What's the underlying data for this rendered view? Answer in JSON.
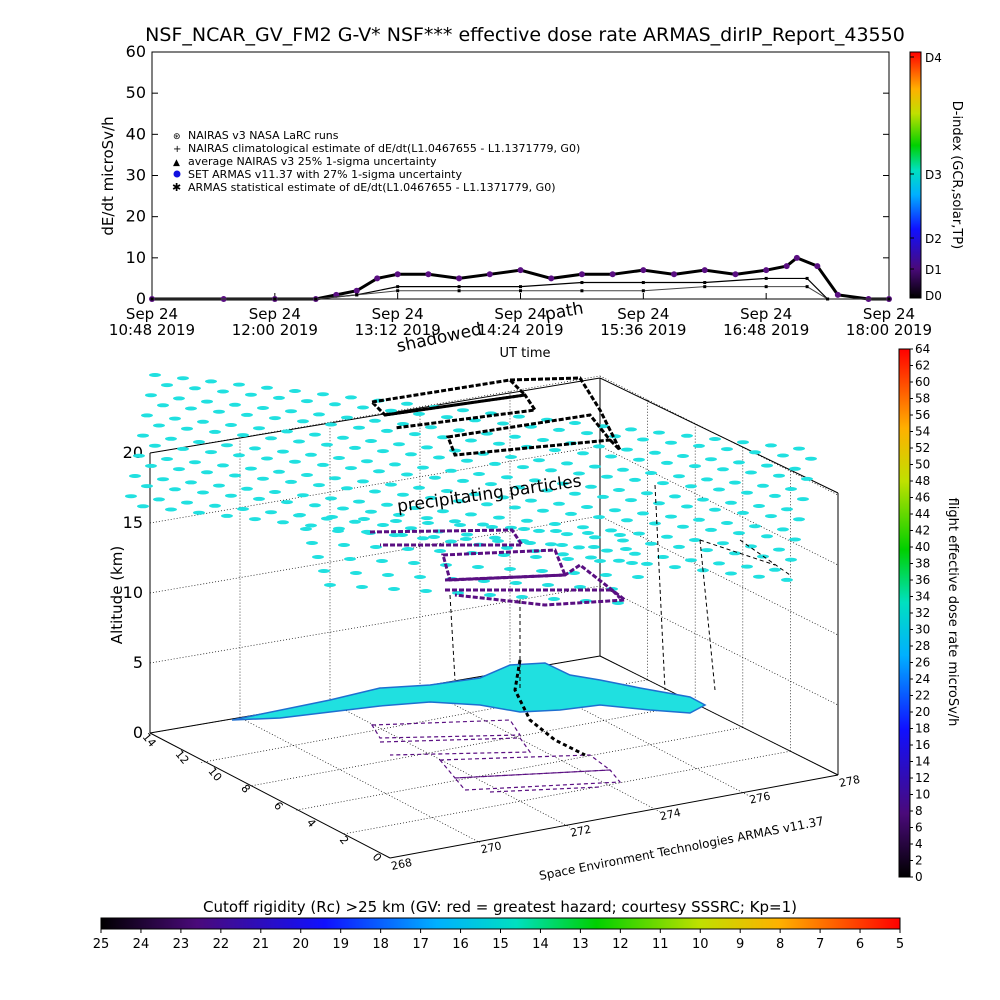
{
  "title": "NSF_NCAR_GV_FM2 G-V* NSF*** effective dose rate ARMAS_dirIP_Report_43550",
  "top_chart": {
    "ylabel": "dE/dt microSv/h",
    "yticks": [
      "0",
      "10",
      "20",
      "30",
      "40",
      "50",
      "60"
    ],
    "xticks": [
      {
        "l1": "Sep 24",
        "l2": "10:48 2019"
      },
      {
        "l1": "Sep 24",
        "l2": "12:00 2019"
      },
      {
        "l1": "Sep 24",
        "l2": "13:12 2019"
      },
      {
        "l1": "Sep 24",
        "l2": "14:24 2019"
      },
      {
        "l1": "Sep 24",
        "l2": "15:36 2019"
      },
      {
        "l1": "Sep 24",
        "l2": "16:48 2019"
      },
      {
        "l1": "Sep 24",
        "l2": "18:00 2019"
      }
    ],
    "xlabel": "UT time",
    "overlay_text": [
      "shadowed",
      "path"
    ],
    "legend": [
      "NAIRAS v3 NASA LaRC runs",
      "NAIRAS climatological estimate of dE/dt(L1.0467655 - L1.1371779, G0)",
      "average NAIRAS v3 25% 1-sigma uncertainty",
      "SET ARMAS v11.37 with 27% 1-sigma uncertainty",
      "ARMAS statistical estimate of dE/dt(L1.0467655 - L1.1371779, G0)"
    ],
    "dindex_ticks": [
      "D0",
      "D1",
      "D2",
      "D3",
      "D4"
    ],
    "dindex_label": "D-index (GCR,solar,TP)"
  },
  "chart_data": {
    "type": "line",
    "x_unit": "UT time (hours), Sep 24 2019",
    "xlim": [
      10.8,
      18.0
    ],
    "ylim": [
      0,
      60
    ],
    "series": [
      {
        "name": "SET ARMAS v11.37 with 27% 1-sigma uncertainty",
        "x": [
          10.8,
          11.5,
          12.0,
          12.4,
          12.6,
          12.8,
          13.0,
          13.2,
          13.5,
          13.8,
          14.1,
          14.4,
          14.7,
          15.0,
          15.3,
          15.6,
          15.9,
          16.2,
          16.5,
          16.8,
          17.0,
          17.1,
          17.3,
          17.5,
          17.8,
          18.0
        ],
        "y": [
          0,
          0,
          0,
          0,
          1,
          2,
          5,
          6,
          6,
          5,
          6,
          7,
          5,
          6,
          6,
          7,
          6,
          7,
          6,
          7,
          8,
          10,
          8,
          1,
          0,
          0
        ]
      },
      {
        "name": "NAIRAS climatological estimate of dE/dt(L1.0467655 - L1.1371779, G0)",
        "x": [
          10.8,
          12.0,
          12.4,
          12.8,
          13.2,
          13.8,
          14.4,
          15.0,
          15.6,
          16.2,
          16.8,
          17.2,
          17.4,
          18.0
        ],
        "y": [
          0,
          0,
          0,
          1,
          3,
          3,
          3,
          4,
          4,
          4,
          5,
          5,
          0,
          0
        ]
      },
      {
        "name": "ARMAS statistical estimate of dE/dt(L1.0467655 - L1.1371779, G0)",
        "x": [
          10.8,
          12.0,
          12.4,
          12.8,
          13.2,
          13.8,
          14.4,
          15.0,
          15.6,
          16.2,
          16.8,
          17.2,
          17.4,
          18.0
        ],
        "y": [
          0,
          0,
          0,
          1,
          2,
          2,
          2,
          2,
          2,
          3,
          3,
          3,
          0,
          0
        ]
      }
    ]
  },
  "lower_chart": {
    "zlabel": "Altitude (km)",
    "zticks": [
      "0",
      "5",
      "10",
      "15",
      "20"
    ],
    "lon_ticks": [
      "268",
      "270",
      "272",
      "274",
      "276",
      "278"
    ],
    "lat_ticks": [
      "0",
      "2",
      "4",
      "6",
      "8",
      "10",
      "12",
      "14"
    ],
    "text_precipitating": "precipitating particles",
    "credit": "Space Environment Technologies ARMAS v11.37",
    "colorbar_label": "flight effective dose rate microSv/h",
    "colorbar_ticks": [
      "0",
      "2",
      "4",
      "6",
      "8",
      "10",
      "12",
      "14",
      "16",
      "18",
      "20",
      "22",
      "24",
      "26",
      "28",
      "30",
      "32",
      "34",
      "36",
      "38",
      "40",
      "42",
      "44",
      "46",
      "48",
      "50",
      "52",
      "54",
      "56",
      "58",
      "60",
      "62",
      "64"
    ]
  },
  "rc_bar": {
    "title": "Cutoff rigidity (Rc) >25 km (GV: red = greatest hazard; courtesy SSSRC; Kp=1)",
    "ticks": [
      "25",
      "24",
      "23",
      "22",
      "21",
      "20",
      "19",
      "18",
      "17",
      "16",
      "15",
      "14",
      "13",
      "12",
      "11",
      "10",
      "9",
      "8",
      "7",
      "6",
      "5"
    ]
  },
  "colors": {
    "cyan": "#20e0e0",
    "purple": "#5a0f82",
    "rainbow_low": "#000000",
    "rainbow_high": "#ff0000"
  }
}
